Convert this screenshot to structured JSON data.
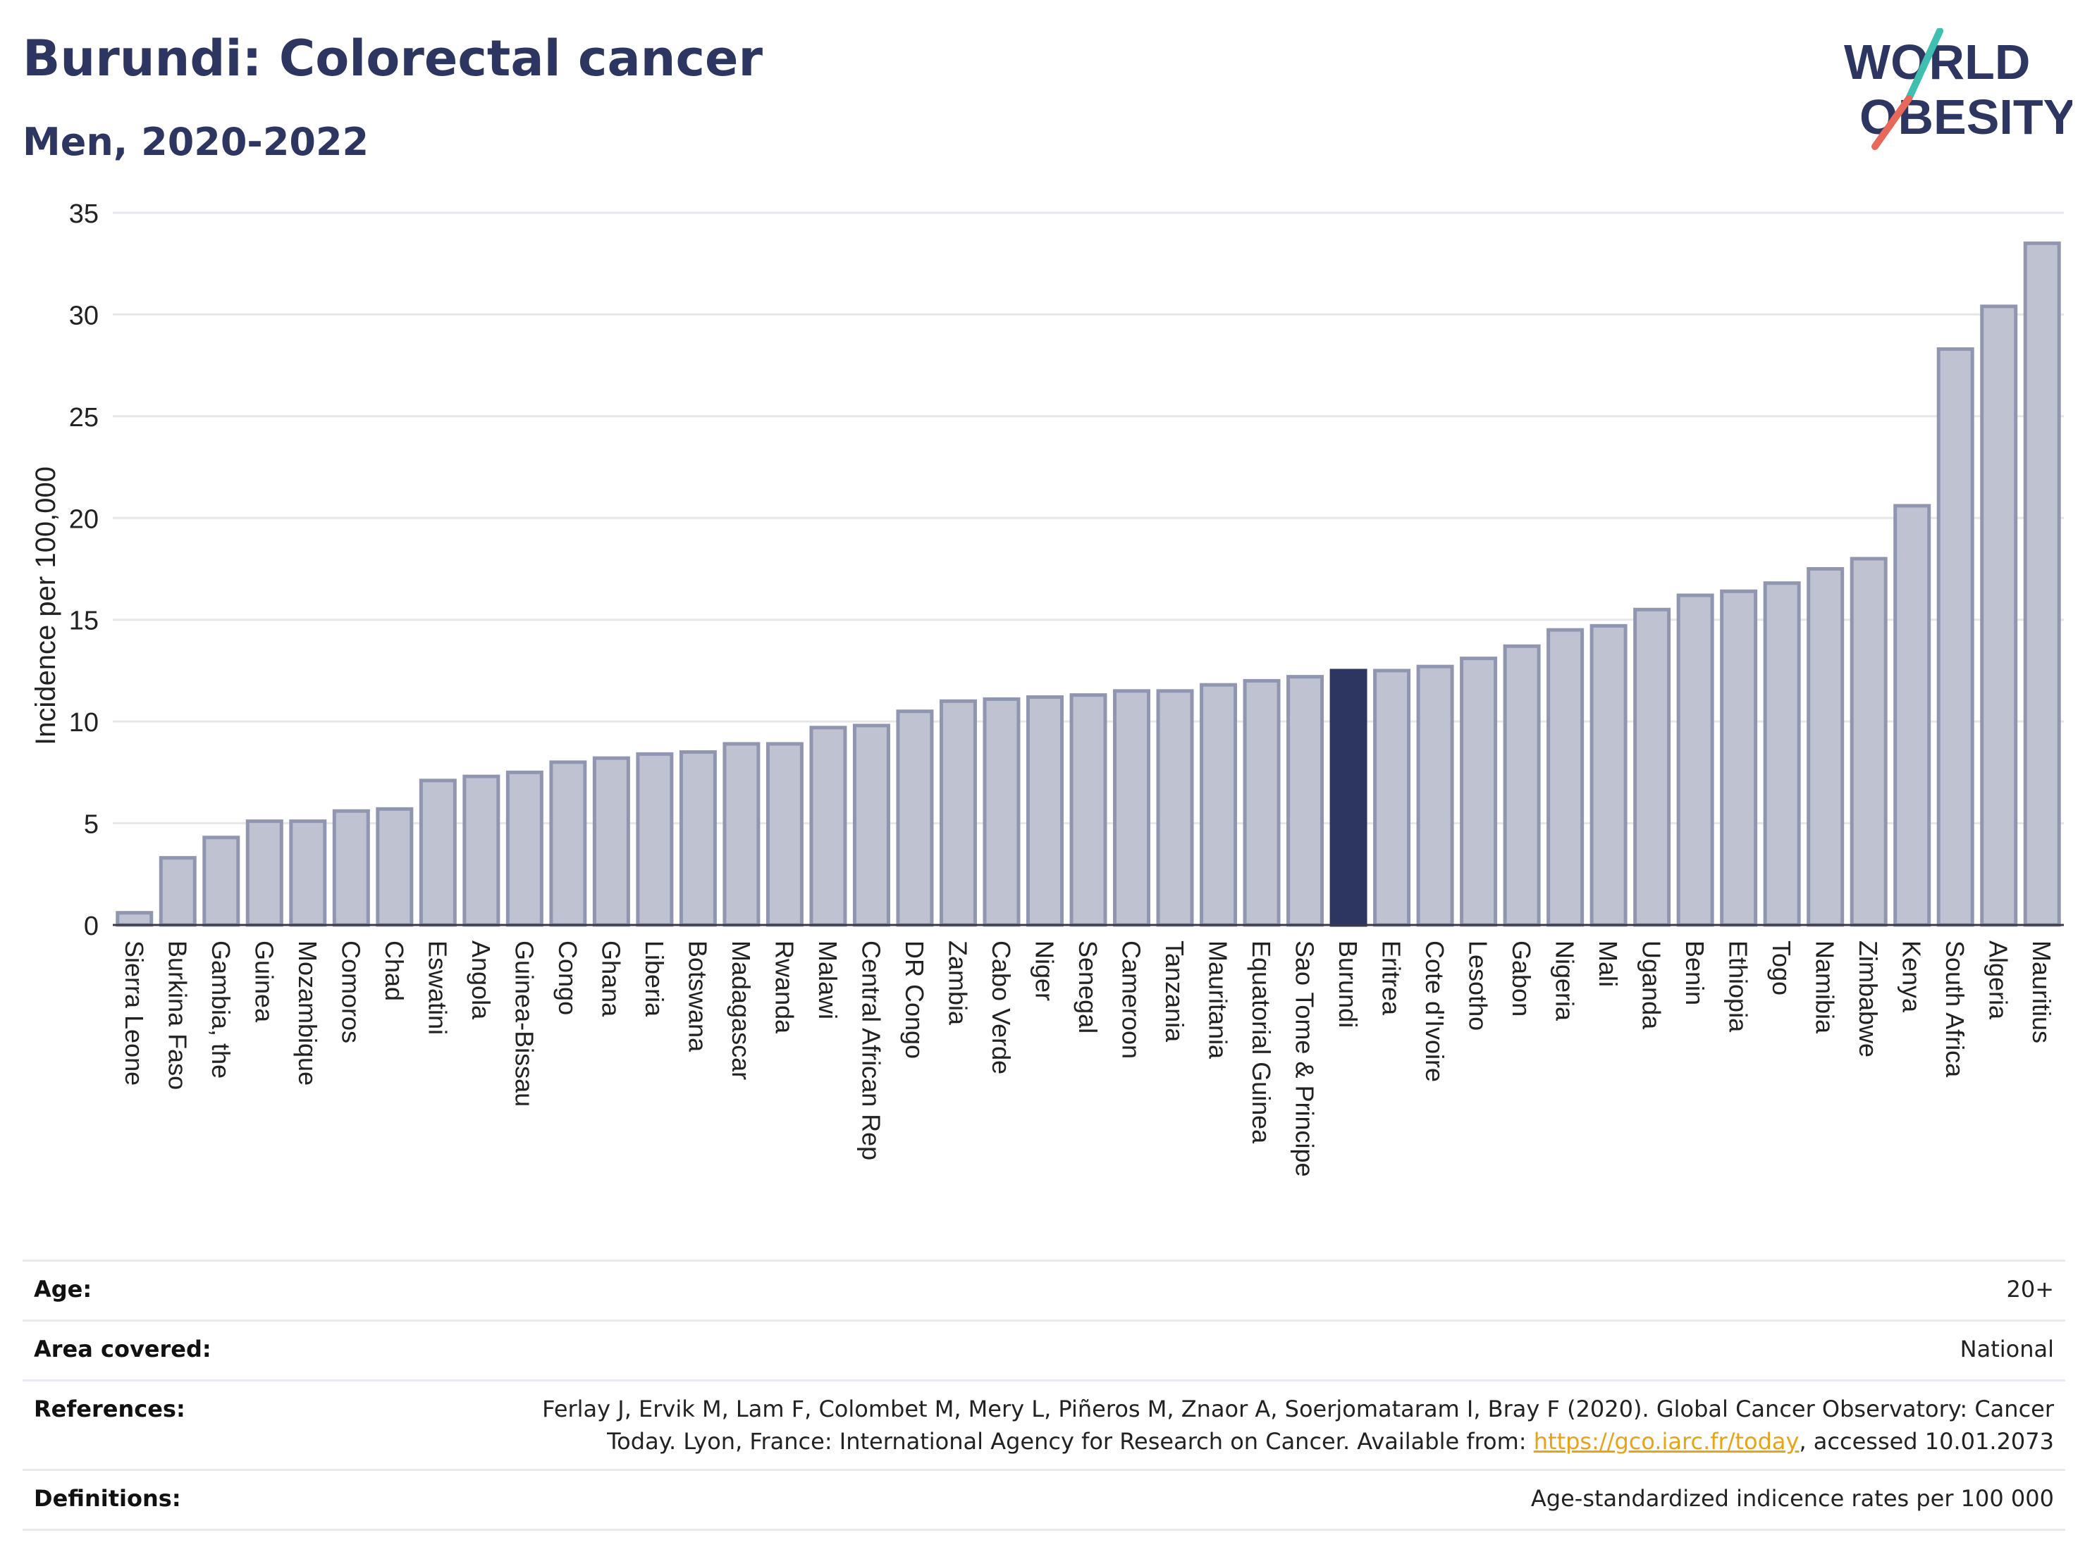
{
  "header": {
    "title": "Burundi: Colorectal cancer",
    "subtitle": "Men, 2020-2022",
    "logo_line1": "WORLD",
    "logo_line2": "OBESITY"
  },
  "colors": {
    "bar": "#bfc2d1",
    "bar_border": "#9096b0",
    "highlight": "#2d3561",
    "grid": "#e6e6ec",
    "logo_teal": "#3fbfb0",
    "logo_coral": "#e8695a",
    "link": "#e8a317"
  },
  "chart_data": {
    "type": "bar",
    "ylabel": "Incidence per 100,000",
    "xlabel": "",
    "ylim": [
      0,
      35
    ],
    "yticks": [
      0,
      5,
      10,
      15,
      20,
      25,
      30,
      35
    ],
    "grid": true,
    "highlight": "Burundi",
    "categories": [
      "Sierra Leone",
      "Burkina Faso",
      "Gambia, the",
      "Guinea",
      "Mozambique",
      "Comoros",
      "Chad",
      "Eswatini",
      "Angola",
      "Guinea-Bissau",
      "Congo",
      "Ghana",
      "Liberia",
      "Botswana",
      "Madagascar",
      "Rwanda",
      "Malawi",
      "Central African Rep",
      "DR Congo",
      "Zambia",
      "Cabo Verde",
      "Niger",
      "Senegal",
      "Cameroon",
      "Tanzania",
      "Mauritania",
      "Equatorial Guinea",
      "Sao Tome & Principe",
      "Burundi",
      "Eritrea",
      "Cote d'Ivoire",
      "Lesotho",
      "Gabon",
      "Nigeria",
      "Mali",
      "Uganda",
      "Benin",
      "Ethiopia",
      "Togo",
      "Namibia",
      "Zimbabwe",
      "Kenya",
      "South Africa",
      "Algeria",
      "Mauritius"
    ],
    "values": [
      0.6,
      3.3,
      4.3,
      5.1,
      5.1,
      5.6,
      5.7,
      7.1,
      7.3,
      7.5,
      8.0,
      8.2,
      8.4,
      8.5,
      8.9,
      8.9,
      9.7,
      9.8,
      10.5,
      11.0,
      11.1,
      11.2,
      11.3,
      11.5,
      11.5,
      11.8,
      12.0,
      12.2,
      12.5,
      12.5,
      12.7,
      13.1,
      13.7,
      14.5,
      14.7,
      15.5,
      16.2,
      16.4,
      16.8,
      17.5,
      18.0,
      20.6,
      28.3,
      30.4,
      33.5
    ]
  },
  "info": {
    "age_label": "Age:",
    "age_value": "20+",
    "area_label": "Area covered:",
    "area_value": "National",
    "references_label": "References:",
    "references_line1": "Ferlay J, Ervik M, Lam F, Colombet M, Mery L, Piñeros M, Znaor A, Soerjomataram I, Bray F (2020). Global Cancer Observatory: Cancer",
    "references_line2_pre": "Today. Lyon, France: International Agency for Research on Cancer. Available from: ",
    "references_link": "https://gco.iarc.fr/today",
    "references_line2_post": ", accessed 10.01.2073",
    "definitions_label": "Definitions:",
    "definitions_value": "Age-standardized indicence rates per 100 000"
  }
}
